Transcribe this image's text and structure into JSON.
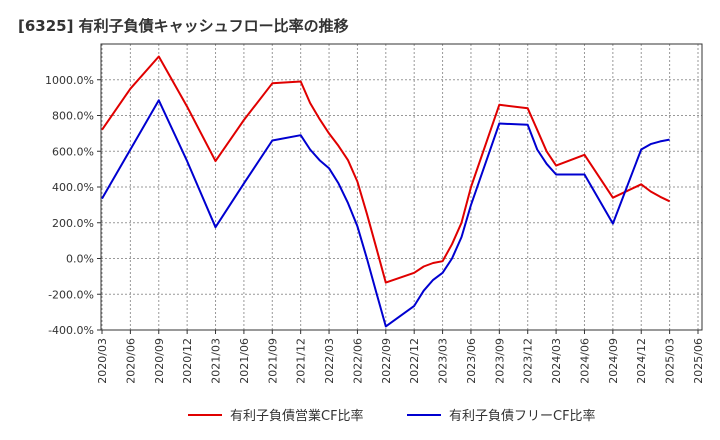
{
  "title": "[6325]  有利子負債キャッシュフロー比率の推移",
  "chart_data": {
    "type": "line",
    "title": "[6325]  有利子負債キャッシュフロー比率の推移",
    "xlabel": "",
    "ylabel": "",
    "x": [
      "2020/03",
      "2020/06",
      "2020/09",
      "2020/12",
      "2021/03",
      "2021/06",
      "2021/09",
      "2021/12",
      "2022/03",
      "2022/06",
      "2022/09",
      "2022/12",
      "2023/03",
      "2023/06",
      "2023/09",
      "2023/12",
      "2024/03",
      "2024/06",
      "2024/09",
      "2024/12",
      "2025/03",
      "2025/06"
    ],
    "ylim": [
      -400,
      1200
    ],
    "yticks": [
      -400,
      -200,
      0,
      200,
      400,
      600,
      800,
      1000
    ],
    "ytick_labels": [
      "-400.0%",
      "-200.0%",
      "0.0%",
      "200.0%",
      "400.0%",
      "600.0%",
      "800.0%",
      "1000.0%"
    ],
    "grid": true,
    "legend_position": "bottom",
    "series": [
      {
        "name": "有利子負債営業CF比率",
        "color": "#e00000",
        "points": [
          [
            "2020/03",
            720
          ],
          [
            "2020/06",
            950
          ],
          [
            "2020/09",
            1130
          ],
          [
            "2020/12",
            850
          ],
          [
            "2021/03",
            545
          ],
          [
            "2021/06",
            775
          ],
          [
            "2021/09",
            980
          ],
          [
            "2021/12",
            990
          ],
          [
            "2022/01",
            870
          ],
          [
            "2022/02",
            780
          ],
          [
            "2022/03",
            700
          ],
          [
            "2022/04",
            630
          ],
          [
            "2022/05",
            550
          ],
          [
            "2022/06",
            430
          ],
          [
            "2022/07",
            250
          ],
          [
            "2022/08",
            60
          ],
          [
            "2022/09",
            -135
          ],
          [
            "2022/12",
            -80
          ],
          [
            "2023/01",
            -45
          ],
          [
            "2023/02",
            -25
          ],
          [
            "2023/03",
            -15
          ],
          [
            "2023/04",
            80
          ],
          [
            "2023/05",
            200
          ],
          [
            "2023/06",
            400
          ],
          [
            "2023/09",
            860
          ],
          [
            "2023/12",
            840
          ],
          [
            "2024/01",
            720
          ],
          [
            "2024/02",
            600
          ],
          [
            "2024/03",
            520
          ],
          [
            "2024/06",
            580
          ],
          [
            "2024/09",
            340
          ],
          [
            "2024/12",
            415
          ],
          [
            "2025/01",
            375
          ],
          [
            "2025/02",
            345
          ],
          [
            "2025/03",
            320
          ]
        ]
      },
      {
        "name": "有利子負債フリーCF比率",
        "color": "#0000d0",
        "points": [
          [
            "2020/03",
            335
          ],
          [
            "2020/06",
            610
          ],
          [
            "2020/09",
            885
          ],
          [
            "2020/12",
            545
          ],
          [
            "2021/03",
            175
          ],
          [
            "2021/06",
            420
          ],
          [
            "2021/09",
            660
          ],
          [
            "2021/12",
            690
          ],
          [
            "2022/01",
            610
          ],
          [
            "2022/02",
            550
          ],
          [
            "2022/03",
            505
          ],
          [
            "2022/04",
            420
          ],
          [
            "2022/05",
            310
          ],
          [
            "2022/06",
            180
          ],
          [
            "2022/07",
            0
          ],
          [
            "2022/08",
            -190
          ],
          [
            "2022/09",
            -380
          ],
          [
            "2022/12",
            -265
          ],
          [
            "2023/01",
            -180
          ],
          [
            "2023/02",
            -120
          ],
          [
            "2023/03",
            -80
          ],
          [
            "2023/04",
            0
          ],
          [
            "2023/05",
            120
          ],
          [
            "2023/06",
            300
          ],
          [
            "2023/09",
            755
          ],
          [
            "2023/12",
            748
          ],
          [
            "2024/01",
            610
          ],
          [
            "2024/02",
            530
          ],
          [
            "2024/03",
            470
          ],
          [
            "2024/06",
            470
          ],
          [
            "2024/09",
            195
          ],
          [
            "2024/12",
            610
          ],
          [
            "2025/01",
            640
          ],
          [
            "2025/02",
            655
          ],
          [
            "2025/03",
            665
          ]
        ]
      }
    ]
  }
}
